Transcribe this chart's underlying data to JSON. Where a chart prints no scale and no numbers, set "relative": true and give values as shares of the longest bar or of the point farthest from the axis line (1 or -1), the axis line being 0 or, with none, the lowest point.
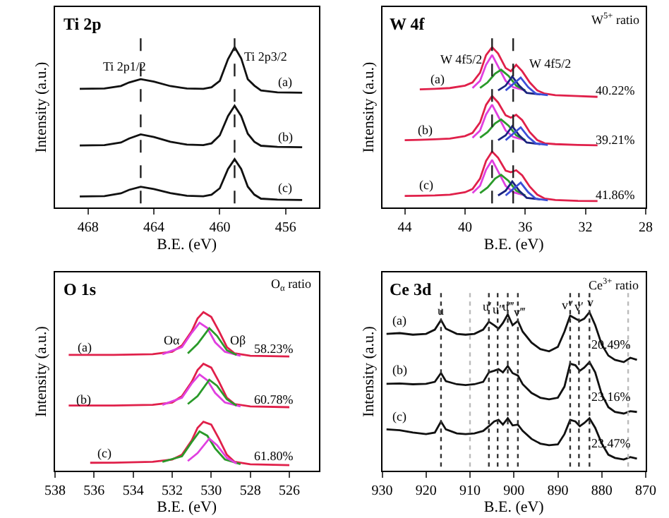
{
  "chart_data": [
    {
      "type": "line",
      "title": "Ti 2p",
      "xlabel": "B.E. (eV)",
      "ylabel": "Intensity (a.u.)",
      "relative": true,
      "tick_labels": "x",
      "xlim": [
        470,
        454
      ],
      "xticks": [
        468,
        464,
        460,
        456
      ],
      "line_style": "solid",
      "series": [
        {
          "color": "#111111",
          "x": [
            468.5,
            467,
            466,
            465.5,
            464.8,
            464,
            463,
            462,
            461,
            460.5,
            460,
            459.5,
            459.1,
            458.7,
            458.3,
            457.9,
            457.5,
            456.5,
            455
          ],
          "values": [
            0.74,
            0.742,
            0.758,
            0.78,
            0.8,
            0.785,
            0.757,
            0.742,
            0.74,
            0.75,
            0.79,
            0.925,
            1.0,
            0.93,
            0.8,
            0.76,
            0.73,
            0.718,
            0.716
          ]
        },
        {
          "color": "#111111",
          "x": [
            468.5,
            467,
            466,
            465.5,
            464.8,
            464,
            463,
            462,
            461,
            460.5,
            460,
            459.5,
            459.1,
            458.7,
            458.3,
            457.9,
            457.5,
            456.5,
            455
          ],
          "values": [
            0.387,
            0.389,
            0.405,
            0.43,
            0.456,
            0.44,
            0.41,
            0.392,
            0.389,
            0.4,
            0.45,
            0.57,
            0.634,
            0.57,
            0.46,
            0.41,
            0.385,
            0.378,
            0.376
          ]
        },
        {
          "color": "#111111",
          "x": [
            468.5,
            467,
            466,
            465.5,
            464.8,
            464,
            463,
            462,
            461,
            460.5,
            460,
            459.5,
            459.1,
            458.7,
            458.3,
            457.9,
            457.5,
            456.5,
            455
          ],
          "values": [
            0.069,
            0.071,
            0.088,
            0.11,
            0.129,
            0.115,
            0.09,
            0.073,
            0.07,
            0.08,
            0.12,
            0.24,
            0.301,
            0.24,
            0.13,
            0.08,
            0.055,
            0.049,
            0.047
          ]
        }
      ],
      "ref_lines": [
        {
          "axis": "x",
          "value": 464.8,
          "line_style": "dashed",
          "color": "#222222"
        },
        {
          "axis": "x",
          "value": 459.1,
          "line_style": "dashed",
          "color": "#222222"
        }
      ],
      "annotations": [
        "Ti 2p1/2",
        "Ti 2p3/2",
        "(a)",
        "(b)",
        "(c)"
      ]
    },
    {
      "type": "line",
      "title": "W 4f",
      "xlabel": "B.E. (eV)",
      "ylabel": "Intensity (a.u.)",
      "relative": true,
      "tick_labels": "x",
      "xlim": [
        45.5,
        28
      ],
      "xticks": [
        44,
        40,
        36,
        32,
        28
      ],
      "line_style": "solid",
      "series": [
        {
          "color": "#e0204a",
          "x": [
            43,
            42,
            41,
            40,
            39.5,
            39,
            38.6,
            38.2,
            37.8,
            37.3,
            36.95,
            36.6,
            36.2,
            35.7,
            35.2,
            34.7,
            34,
            32.5,
            31.2
          ],
          "values": [
            0.737,
            0.74,
            0.745,
            0.76,
            0.78,
            0.84,
            0.95,
            1.0,
            0.96,
            0.87,
            0.85,
            0.89,
            0.85,
            0.78,
            0.73,
            0.71,
            0.7,
            0.695,
            0.69
          ]
        },
        {
          "color": "#e040e0",
          "x": [
            39.5,
            39,
            38.6,
            38.2,
            37.8,
            37.3,
            36.8,
            36
          ],
          "values": [
            0.745,
            0.79,
            0.89,
            0.951,
            0.88,
            0.79,
            0.75,
            0.73
          ]
        },
        {
          "color": "#2a9a2a",
          "x": [
            39,
            38.5,
            38,
            37.6,
            37.1,
            36.6,
            36
          ],
          "values": [
            0.745,
            0.78,
            0.835,
            0.859,
            0.82,
            0.76,
            0.73
          ]
        },
        {
          "color": "#1a237e",
          "x": [
            37.8,
            37.3,
            36.86,
            36.4,
            35.9,
            35
          ],
          "values": [
            0.73,
            0.76,
            0.817,
            0.76,
            0.715,
            0.705
          ]
        },
        {
          "color": "#3b4fd8",
          "x": [
            37.3,
            36.8,
            36.3,
            35.8,
            35.3,
            34.5
          ],
          "values": [
            0.73,
            0.77,
            0.81,
            0.75,
            0.71,
            0.7
          ]
        },
        {
          "color": "#e0204a",
          "x": [
            44,
            43,
            42,
            41,
            40,
            39.5,
            39,
            38.6,
            38.2,
            37.8,
            37.3,
            36.95,
            36.6,
            36.2,
            35.7,
            35.2,
            34.7,
            34,
            32.5,
            31.2
          ],
          "values": [
            0.42,
            0.422,
            0.425,
            0.43,
            0.445,
            0.465,
            0.53,
            0.64,
            0.695,
            0.655,
            0.575,
            0.56,
            0.578,
            0.545,
            0.47,
            0.42,
            0.4,
            0.395,
            0.39,
            0.388
          ]
        },
        {
          "color": "#e040e0",
          "x": [
            39.5,
            39,
            38.6,
            38.2,
            37.8,
            37.3,
            36.8,
            36
          ],
          "values": [
            0.435,
            0.48,
            0.58,
            0.641,
            0.57,
            0.48,
            0.44,
            0.42
          ]
        },
        {
          "color": "#2a9a2a",
          "x": [
            39,
            38.5,
            38,
            37.6,
            37.1,
            36.6,
            36
          ],
          "values": [
            0.435,
            0.47,
            0.525,
            0.549,
            0.51,
            0.45,
            0.42
          ]
        },
        {
          "color": "#1a237e",
          "x": [
            37.8,
            37.3,
            36.86,
            36.4,
            35.9,
            35
          ],
          "values": [
            0.42,
            0.45,
            0.507,
            0.45,
            0.405,
            0.395
          ]
        },
        {
          "color": "#3b4fd8",
          "x": [
            37.3,
            36.8,
            36.3,
            35.8,
            35.3,
            34.5
          ],
          "values": [
            0.42,
            0.46,
            0.5,
            0.44,
            0.4,
            0.39
          ]
        },
        {
          "color": "#e0204a",
          "x": [
            44,
            43,
            42,
            41,
            40,
            39.5,
            39,
            38.6,
            38.2,
            37.8,
            37.3,
            36.95,
            36.6,
            36.2,
            35.7,
            35.2,
            34.7,
            34,
            32.5,
            31.2
          ],
          "values": [
            0.072,
            0.073,
            0.075,
            0.08,
            0.095,
            0.115,
            0.18,
            0.29,
            0.349,
            0.31,
            0.23,
            0.22,
            0.232,
            0.2,
            0.13,
            0.08,
            0.055,
            0.047,
            0.041,
            0.04
          ]
        },
        {
          "color": "#e040e0",
          "x": [
            39.5,
            39,
            38.6,
            38.2,
            37.8,
            37.3,
            36.8,
            36
          ],
          "values": [
            0.09,
            0.135,
            0.235,
            0.296,
            0.225,
            0.135,
            0.095,
            0.075
          ]
        },
        {
          "color": "#2a9a2a",
          "x": [
            39,
            38.5,
            38,
            37.6,
            37.1,
            36.6,
            36
          ],
          "values": [
            0.09,
            0.125,
            0.18,
            0.204,
            0.165,
            0.105,
            0.075
          ]
        },
        {
          "color": "#1a237e",
          "x": [
            37.8,
            37.3,
            36.86,
            36.4,
            35.9,
            35
          ],
          "values": [
            0.075,
            0.105,
            0.162,
            0.105,
            0.06,
            0.05
          ]
        },
        {
          "color": "#3b4fd8",
          "x": [
            37.3,
            36.8,
            36.3,
            35.8,
            35.3,
            34.5
          ],
          "values": [
            0.075,
            0.115,
            0.155,
            0.095,
            0.055,
            0.045
          ]
        }
      ],
      "ref_lines": [
        {
          "axis": "x",
          "value": 38.2,
          "line_style": "dashed",
          "color": "#222222"
        },
        {
          "axis": "x",
          "value": 36.8,
          "line_style": "dashed",
          "color": "#222222"
        }
      ],
      "annotations": [
        "W$^{5+}$ ratio",
        "W 4f5/2",
        "W 4f5/2",
        "(a)",
        "(b)",
        "(c)",
        "40.22%",
        "39.21%",
        "41.86%"
      ]
    },
    {
      "type": "line",
      "title": "O 1s",
      "xlabel": "B.E. (eV)",
      "ylabel": "Intensity (a.u.)",
      "relative": true,
      "tick_labels": "x",
      "xlim": [
        538,
        524.5
      ],
      "xticks": [
        538,
        536,
        534,
        532,
        530,
        528,
        526
      ],
      "line_style": "solid",
      "series": [
        {
          "color": "#e0204a",
          "x": [
            537.3,
            535,
            533,
            532,
            531.5,
            531,
            530.7,
            530.4,
            530.0,
            529.6,
            529.2,
            528.8,
            528,
            526
          ],
          "values": [
            0.73,
            0.73,
            0.735,
            0.75,
            0.79,
            0.88,
            0.96,
            1.0,
            0.97,
            0.88,
            0.78,
            0.74,
            0.725,
            0.72
          ]
        },
        {
          "color": "#e040e0",
          "x": [
            532.5,
            531.5,
            531,
            530.6,
            530.2,
            529.8,
            529.3,
            528.5
          ],
          "values": [
            0.735,
            0.78,
            0.87,
            0.933,
            0.9,
            0.81,
            0.75,
            0.725
          ]
        },
        {
          "color": "#2a9a2a",
          "x": [
            531.2,
            530.7,
            530.1,
            529.7,
            529.2,
            528.7
          ],
          "values": [
            0.74,
            0.8,
            0.899,
            0.85,
            0.76,
            0.73
          ]
        },
        {
          "color": "#e0204a",
          "x": [
            537.3,
            535,
            533,
            532,
            531.5,
            531,
            530.7,
            530.4,
            530.0,
            529.6,
            529.2,
            528.8,
            528,
            526
          ],
          "values": [
            0.411,
            0.411,
            0.415,
            0.43,
            0.47,
            0.56,
            0.635,
            0.674,
            0.65,
            0.56,
            0.46,
            0.42,
            0.405,
            0.4
          ]
        },
        {
          "color": "#e040e0",
          "x": [
            532.5,
            531.5,
            531,
            530.6,
            530.2,
            529.8,
            529.3,
            528.5
          ],
          "values": [
            0.415,
            0.46,
            0.55,
            0.607,
            0.57,
            0.49,
            0.43,
            0.405
          ]
        },
        {
          "color": "#2a9a2a",
          "x": [
            531.2,
            530.7,
            530.1,
            529.7,
            529.2,
            528.7
          ],
          "values": [
            0.42,
            0.47,
            0.573,
            0.535,
            0.45,
            0.41
          ]
        },
        {
          "color": "#e0204a",
          "x": [
            536.2,
            535,
            533,
            532,
            531.5,
            531,
            530.7,
            530.4,
            530.0,
            529.6,
            529.2,
            528.8,
            528,
            526
          ],
          "values": [
            0.049,
            0.05,
            0.055,
            0.07,
            0.1,
            0.19,
            0.27,
            0.308,
            0.29,
            0.2,
            0.1,
            0.055,
            0.04,
            0.034
          ]
        },
        {
          "color": "#2a9a2a",
          "x": [
            532.5,
            531.5,
            531,
            530.6,
            530.2,
            529.8,
            529.3,
            528.5
          ],
          "values": [
            0.055,
            0.09,
            0.18,
            0.247,
            0.22,
            0.14,
            0.07,
            0.04
          ]
        },
        {
          "color": "#e040e0",
          "x": [
            531.2,
            530.7,
            530.1,
            529.7,
            529.2,
            528.7
          ],
          "values": [
            0.06,
            0.11,
            0.202,
            0.16,
            0.08,
            0.045
          ]
        }
      ],
      "annotations": [
        "O$_{α}$ ratio",
        "Oα",
        "Oβ",
        "(a)",
        "(b)",
        "(c)",
        "58.23%",
        "60.78%",
        "61.80%"
      ]
    },
    {
      "type": "line",
      "title": "Ce 3d",
      "xlabel": "B.E. (eV)",
      "ylabel": "Intensity (a.u.)",
      "relative": true,
      "tick_labels": "x",
      "xlim": [
        930,
        870
      ],
      "xticks": [
        930,
        920,
        910,
        900,
        890,
        880,
        870
      ],
      "line_style": "solid",
      "series": [
        {
          "color": "#111111",
          "x": [
            929,
            926,
            923,
            920,
            918,
            916.6,
            915.5,
            913,
            911,
            909,
            907,
            905.7,
            904.5,
            903.5,
            902.5,
            901.4,
            900.3,
            899.1,
            898,
            896,
            894,
            892,
            890,
            888.5,
            887.2,
            886,
            885,
            884,
            882.8,
            881.5,
            880,
            878.5,
            877,
            875,
            873.5,
            872
          ],
          "values": [
            0.863,
            0.868,
            0.858,
            0.863,
            0.89,
            0.951,
            0.896,
            0.863,
            0.858,
            0.863,
            0.89,
            0.94,
            0.918,
            0.896,
            0.932,
            0.986,
            0.918,
            0.945,
            0.877,
            0.808,
            0.767,
            0.753,
            0.781,
            0.877,
            0.978,
            0.959,
            0.945,
            0.959,
            1.0,
            0.918,
            0.795,
            0.726,
            0.699,
            0.685,
            0.712,
            0.699
          ]
        },
        {
          "color": "#111111",
          "x": [
            929,
            926,
            923,
            920,
            918,
            916.6,
            915.5,
            913,
            911,
            909,
            907,
            905.7,
            904.5,
            903.5,
            902.5,
            901.4,
            900.3,
            899.1,
            898,
            896,
            894,
            892,
            890,
            888.5,
            887.2,
            886,
            885,
            884,
            882.8,
            881.5,
            880,
            878.5,
            877,
            875,
            873.5,
            872
          ],
          "values": [
            0.548,
            0.55,
            0.545,
            0.548,
            0.56,
            0.616,
            0.565,
            0.545,
            0.54,
            0.545,
            0.56,
            0.62,
            0.63,
            0.64,
            0.62,
            0.66,
            0.615,
            0.6,
            0.545,
            0.49,
            0.46,
            0.45,
            0.46,
            0.53,
            0.675,
            0.665,
            0.63,
            0.65,
            0.685,
            0.62,
            0.48,
            0.4,
            0.37,
            0.36,
            0.375,
            0.37
          ]
        },
        {
          "color": "#111111",
          "x": [
            929,
            926,
            923,
            920,
            918,
            916.6,
            915.5,
            913,
            911,
            909,
            907,
            905.7,
            904.5,
            903.5,
            902.5,
            901.4,
            900.3,
            899.1,
            898,
            896,
            894,
            892,
            890,
            888.5,
            887.2,
            886,
            885,
            884,
            882.8,
            881.5,
            880,
            878.5,
            877,
            875,
            873.5,
            872
          ],
          "values": [
            0.26,
            0.255,
            0.24,
            0.23,
            0.24,
            0.31,
            0.26,
            0.235,
            0.23,
            0.235,
            0.25,
            0.28,
            0.31,
            0.32,
            0.29,
            0.33,
            0.285,
            0.29,
            0.25,
            0.2,
            0.17,
            0.16,
            0.165,
            0.23,
            0.32,
            0.31,
            0.28,
            0.3,
            0.33,
            0.27,
            0.17,
            0.1,
            0.08,
            0.07,
            0.085,
            0.075
          ]
        }
      ],
      "ref_lines": [
        {
          "axis": "x",
          "value": 916.6,
          "line_style": "dotted",
          "color": "#333333"
        },
        {
          "axis": "x",
          "value": 905.7,
          "line_style": "dotted",
          "color": "#333333"
        },
        {
          "axis": "x",
          "value": 903.7,
          "line_style": "dotted",
          "color": "#333333"
        },
        {
          "axis": "x",
          "value": 901.4,
          "line_style": "dotted",
          "color": "#333333"
        },
        {
          "axis": "x",
          "value": 899.1,
          "line_style": "dotted",
          "color": "#333333"
        },
        {
          "axis": "x",
          "value": 887.2,
          "line_style": "dotted",
          "color": "#333333"
        },
        {
          "axis": "x",
          "value": 885.2,
          "line_style": "dotted",
          "color": "#333333"
        },
        {
          "axis": "x",
          "value": 882.8,
          "line_style": "dotted",
          "color": "#333333"
        },
        {
          "axis": "x",
          "value": 910,
          "line_style": "dotted",
          "color": "#bbbbbb"
        },
        {
          "axis": "x",
          "value": 874,
          "line_style": "dotted",
          "color": "#bbbbbb"
        }
      ],
      "annotations": [
        "Ce$^{3+}$ ratio",
        {
          "text": "u",
          "x": 916.6,
          "y": 1.01
        },
        {
          "text": "u′",
          "x": 905.9,
          "y": 1.04
        },
        {
          "text": "u″",
          "x": 903.5,
          "y": 1.02
        },
        {
          "text": "u‴",
          "x": 901.2,
          "y": 1.04
        },
        {
          "text": "v‴",
          "x": 898.6,
          "y": 1.0
        },
        {
          "text": "v″",
          "x": 887.6,
          "y": 1.05
        },
        {
          "text": "v′",
          "x": 885.2,
          "y": 1.04
        },
        {
          "text": "v",
          "x": 882.6,
          "y": 1.06
        },
        "(a)",
        "(b)",
        "(c)",
        "20.49%",
        "23.16%",
        "23.47%"
      ]
    }
  ]
}
